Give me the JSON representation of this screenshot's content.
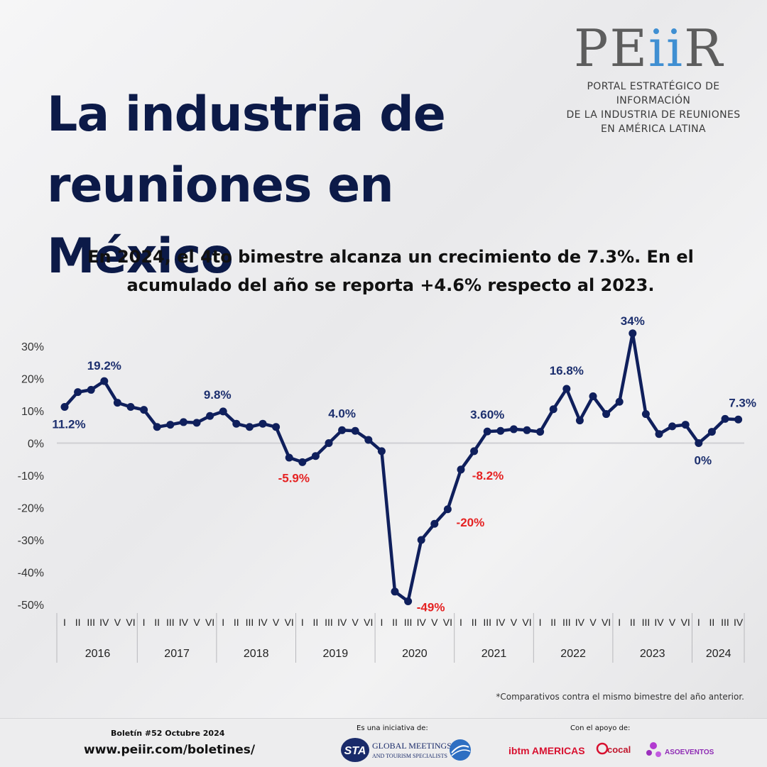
{
  "logo": {
    "wordmark_pre": "PE",
    "wordmark_ii": "ii",
    "wordmark_post": "R",
    "line1": "PORTAL ESTRATÉGICO DE INFORMACIÓN",
    "line2": "DE LA INDUSTRIA DE REUNIONES",
    "line3": "EN AMÉRICA LATINA"
  },
  "title": "La industria de reuniones en México",
  "subtitle": "En 2024, el 4to bimestre alcanza un crecimiento de 7.3%. En el acumulado del año se reporta +4.6% respecto al 2023.",
  "chart_data": {
    "type": "line",
    "series": [
      {
        "values": [
          11.2,
          15.8,
          16.5,
          19.2,
          12.5,
          11.2,
          10.3,
          5.0,
          5.7,
          6.5,
          6.3,
          8.4,
          9.8,
          6.0,
          5.0,
          6.0,
          5.0,
          -4.5,
          -5.9,
          -4.0,
          0.0,
          4.0,
          3.8,
          1.0,
          -2.5,
          -46.0,
          -49.0,
          -30.0,
          -25.0,
          -20.5,
          -8.2,
          -2.5,
          3.6,
          3.8,
          4.3,
          4.0,
          3.5,
          10.5,
          16.8,
          7.0,
          14.5,
          9.0,
          12.8,
          34.0,
          9.0,
          2.8,
          5.2,
          5.7,
          0.0,
          3.5,
          7.5,
          7.3
        ]
      }
    ],
    "ylim": [
      -50,
      30
    ],
    "y_ticks": [
      "30%",
      "20%",
      "10%",
      "0%",
      "-10%",
      "-20%",
      "-30%",
      "-40%",
      "-50%"
    ],
    "bimester_labels": [
      "I",
      "II",
      "III",
      "IV",
      "V",
      "VI"
    ],
    "years": [
      "2016",
      "2017",
      "2018",
      "2019",
      "2020",
      "2021",
      "2022",
      "2023",
      "2024"
    ],
    "points_per_year": [
      6,
      6,
      6,
      6,
      6,
      6,
      6,
      6,
      4
    ],
    "annotations": [
      {
        "index": 0,
        "text": "11.2%",
        "color": "#1c2f6e"
      },
      {
        "index": 3,
        "text": "19.2%",
        "color": "#1c2f6e"
      },
      {
        "index": 12,
        "text": "9.8%",
        "color": "#1c2f6e"
      },
      {
        "index": 18,
        "text": "-5.9%",
        "color": "#e52222"
      },
      {
        "index": 21,
        "text": "4.0%",
        "color": "#1c2f6e"
      },
      {
        "index": 26,
        "text": "-49%",
        "color": "#e52222"
      },
      {
        "index": 29,
        "text": "-20%",
        "color": "#e52222"
      },
      {
        "index": 30,
        "text": "-8.2%",
        "color": "#e52222"
      },
      {
        "index": 32,
        "text": "3.60%",
        "color": "#1c2f6e"
      },
      {
        "index": 38,
        "text": "16.8%",
        "color": "#1c2f6e"
      },
      {
        "index": 43,
        "text": "34%",
        "color": "#1c2f6e"
      },
      {
        "index": 48,
        "text": "0%",
        "color": "#1c2f6e"
      },
      {
        "index": 51,
        "text": "7.3%",
        "color": "#1c2f6e"
      }
    ],
    "line_color": "#0f1f5c",
    "grid": false
  },
  "footnote": "*Comparativos contra el mismo bimestre del año anterior.",
  "footer": {
    "bulletin": "Boletín #52 Octubre 2024",
    "url": "www.peiir.com/boletines/",
    "initiative_label": "Es una iniciativa de:",
    "support_label": "Con el apoyo de:",
    "sta_mark": "STA",
    "sta_name_line1": "GLOBAL MEETINGS",
    "sta_name_line2": "AND TOURISM SPECIALISTS",
    "sponsor1": "ibtm AMERICAS",
    "sponsor2": "cocal",
    "sponsor3": "ASOEVENTOS"
  }
}
